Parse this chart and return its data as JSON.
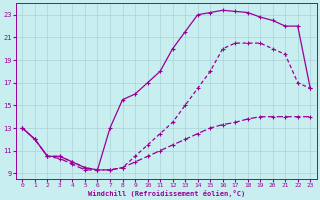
{
  "xlabel": "Windchill (Refroidissement éolien,°C)",
  "bg_color": "#c8eef0",
  "grid_color": "#b0d8dc",
  "line_color": "#990099",
  "xlim": [
    -0.5,
    23.5
  ],
  "ylim": [
    8.5,
    24.0
  ],
  "xticks": [
    0,
    1,
    2,
    3,
    4,
    5,
    6,
    7,
    8,
    9,
    10,
    11,
    12,
    13,
    14,
    15,
    16,
    17,
    18,
    19,
    20,
    21,
    22,
    23
  ],
  "yticks": [
    9,
    11,
    13,
    15,
    17,
    19,
    21,
    23
  ],
  "line1_x": [
    0,
    1,
    2,
    3,
    4,
    5,
    6,
    7,
    8,
    9,
    10,
    11,
    12,
    13,
    14,
    15,
    16,
    17,
    18,
    19,
    20,
    21,
    22,
    23
  ],
  "line1_y": [
    13.0,
    12.0,
    10.5,
    10.5,
    10.0,
    9.5,
    9.3,
    13.0,
    15.5,
    16.0,
    17.0,
    18.0,
    20.0,
    21.5,
    23.0,
    23.2,
    23.4,
    23.3,
    23.2,
    22.8,
    22.5,
    22.0,
    22.0,
    16.5
  ],
  "line2_x": [
    0,
    1,
    2,
    3,
    4,
    5,
    6,
    7,
    8,
    9,
    10,
    11,
    12,
    13,
    14,
    15,
    16,
    17,
    18,
    19,
    20,
    21,
    22,
    23
  ],
  "line2_y": [
    13.0,
    12.0,
    10.5,
    10.5,
    10.0,
    9.5,
    9.3,
    9.3,
    9.5,
    10.5,
    11.5,
    12.5,
    13.5,
    15.0,
    16.5,
    18.0,
    20.0,
    20.5,
    20.5,
    20.5,
    20.0,
    19.5,
    17.0,
    16.5
  ],
  "line3_x": [
    0,
    1,
    2,
    3,
    4,
    5,
    6,
    7,
    8,
    9,
    10,
    11,
    12,
    13,
    14,
    15,
    16,
    17,
    18,
    19,
    20,
    21,
    22,
    23
  ],
  "line3_y": [
    13.0,
    12.0,
    10.5,
    10.3,
    9.8,
    9.3,
    9.3,
    9.3,
    9.5,
    10.0,
    10.5,
    11.0,
    11.5,
    12.0,
    12.5,
    13.0,
    13.3,
    13.5,
    13.8,
    14.0,
    14.0,
    14.0,
    14.0,
    14.0
  ]
}
